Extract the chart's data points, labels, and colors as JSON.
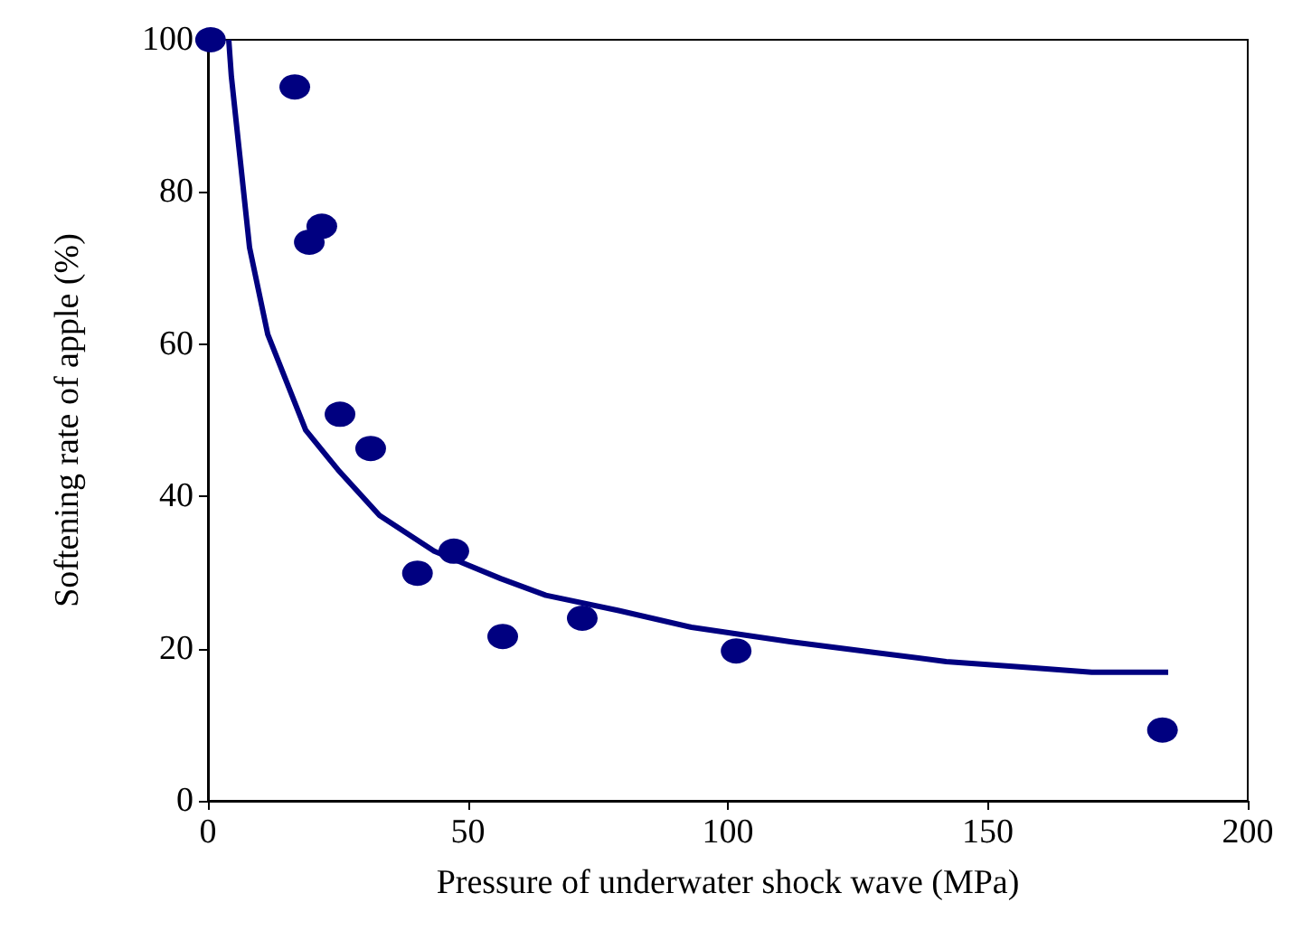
{
  "chart_data": {
    "type": "scatter",
    "xlabel": "Pressure of underwater shock wave (MPa)",
    "ylabel": "Softening rate of apple (%)",
    "xlim": [
      0,
      200
    ],
    "xticks": [
      0,
      50,
      100,
      150,
      200
    ],
    "ylim": [
      0,
      100
    ],
    "yticks": [
      0,
      20,
      40,
      60,
      80,
      100
    ],
    "grid": false,
    "marker": "circle",
    "series": [
      {
        "color": "#000080",
        "x": [
          0.5,
          16.7,
          19.5,
          21.9,
          25.4,
          31.3,
          40.3,
          47.3,
          56.7,
          72,
          101.6,
          183.6
        ],
        "values": [
          100,
          93.8,
          73.4,
          75.5,
          50.8,
          46.3,
          29.9,
          32.8,
          21.6,
          24,
          19.7,
          9.3
        ]
      },
      {
        "type": "line",
        "color": "#000080",
        "marker": "none",
        "x": [
          4,
          4.5,
          8,
          11.5,
          18.8,
          25,
          33,
          43.5,
          56.3,
          65,
          79,
          93,
          112,
          128,
          142,
          156,
          170,
          184.7
        ],
        "values": [
          100,
          95.2,
          72.7,
          61.3,
          48.7,
          43.5,
          37.5,
          32.8,
          29.2,
          27,
          25,
          22.8,
          20.9,
          19.5,
          18.3,
          17.6,
          16.9,
          16.9
        ]
      }
    ]
  }
}
